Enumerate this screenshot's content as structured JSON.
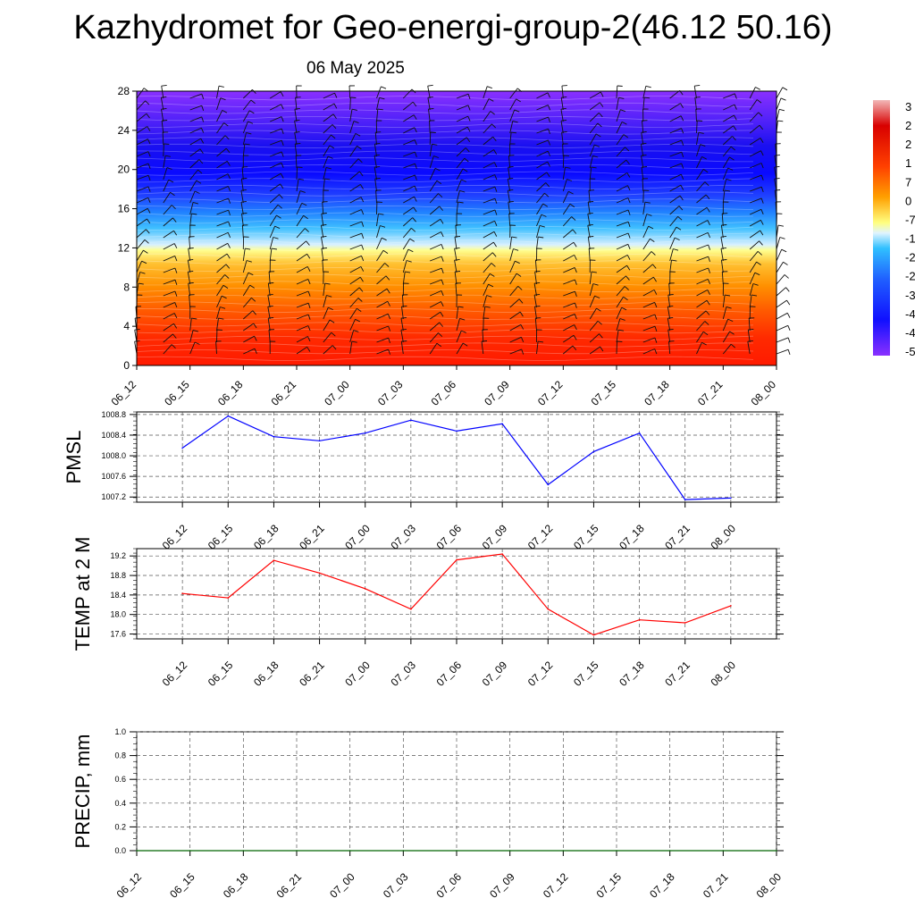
{
  "title": "Kazhydromet for Geo-energi-group-2(46.12 50.16)",
  "subtitle": "06 May 2025",
  "chart_data": [
    {
      "type": "heatmap",
      "name": "contour",
      "x_ticks": [
        "06_12",
        "06_15",
        "06_18",
        "06_21",
        "07_00",
        "07_03",
        "07_06",
        "07_09",
        "07_12",
        "07_15",
        "07_18",
        "07_21",
        "08_00"
      ],
      "y_ticks": [
        0,
        4,
        8,
        12,
        16,
        20,
        24,
        28
      ],
      "ylim": [
        0,
        28
      ],
      "colorbar_labels": [
        "3",
        "2",
        "2",
        "1",
        "7",
        "0",
        "-7",
        "-1",
        "-2",
        "-2",
        "-3",
        "-4",
        "-4",
        "-5"
      ],
      "colorbar_colors": [
        "#f2b8b8",
        "#e60000",
        "#ff3300",
        "#ff8000",
        "#ffc020",
        "#ffff80",
        "#e0f4ff",
        "#30c0ff",
        "#2080ff",
        "#2040ff",
        "#1010ff",
        "#8030ff"
      ]
    },
    {
      "type": "line",
      "name": "pmsl",
      "ylabel": "PMSL",
      "x": [
        "06_12",
        "06_15",
        "06_18",
        "06_21",
        "07_00",
        "07_03",
        "07_06",
        "07_09",
        "07_12",
        "07_15",
        "07_18",
        "07_21",
        "08_00"
      ],
      "values": [
        1008.15,
        1008.77,
        1008.37,
        1008.29,
        1008.44,
        1008.69,
        1008.48,
        1008.62,
        1007.44,
        1008.08,
        1008.44,
        1007.15,
        1007.18
      ],
      "y_ticks": [
        "1007.2",
        "1007.6",
        "1008.0",
        "1008.4",
        "1008.8"
      ],
      "ylim": [
        1007.1,
        1008.85
      ],
      "color": "#0000ff"
    },
    {
      "type": "line",
      "name": "temp",
      "ylabel": "TEMP at 2 M",
      "x": [
        "06_12",
        "06_15",
        "06_18",
        "06_21",
        "07_00",
        "07_03",
        "07_06",
        "07_09",
        "07_12",
        "07_15",
        "07_18",
        "07_21",
        "08_00"
      ],
      "values": [
        18.43,
        18.34,
        19.11,
        18.85,
        18.53,
        18.11,
        19.12,
        19.24,
        18.11,
        17.58,
        17.89,
        17.83,
        18.18
      ],
      "y_ticks": [
        "17.6",
        "18.0",
        "18.4",
        "18.8",
        "19.2"
      ],
      "ylim": [
        17.5,
        19.35
      ],
      "color": "#ff0000"
    },
    {
      "type": "line",
      "name": "precip",
      "ylabel": "PRECIP, mm",
      "x": [
        "06_12",
        "06_15",
        "06_18",
        "06_21",
        "07_00",
        "07_03",
        "07_06",
        "07_09",
        "07_12",
        "07_15",
        "07_18",
        "07_21",
        "08_00"
      ],
      "values": [
        0,
        0,
        0,
        0,
        0,
        0,
        0,
        0,
        0,
        0,
        0,
        0,
        0
      ],
      "y_ticks": [
        "0.0",
        "0.2",
        "0.4",
        "0.6",
        "0.8",
        "1.0"
      ],
      "ylim": [
        0,
        1
      ],
      "color": "#006400"
    }
  ]
}
